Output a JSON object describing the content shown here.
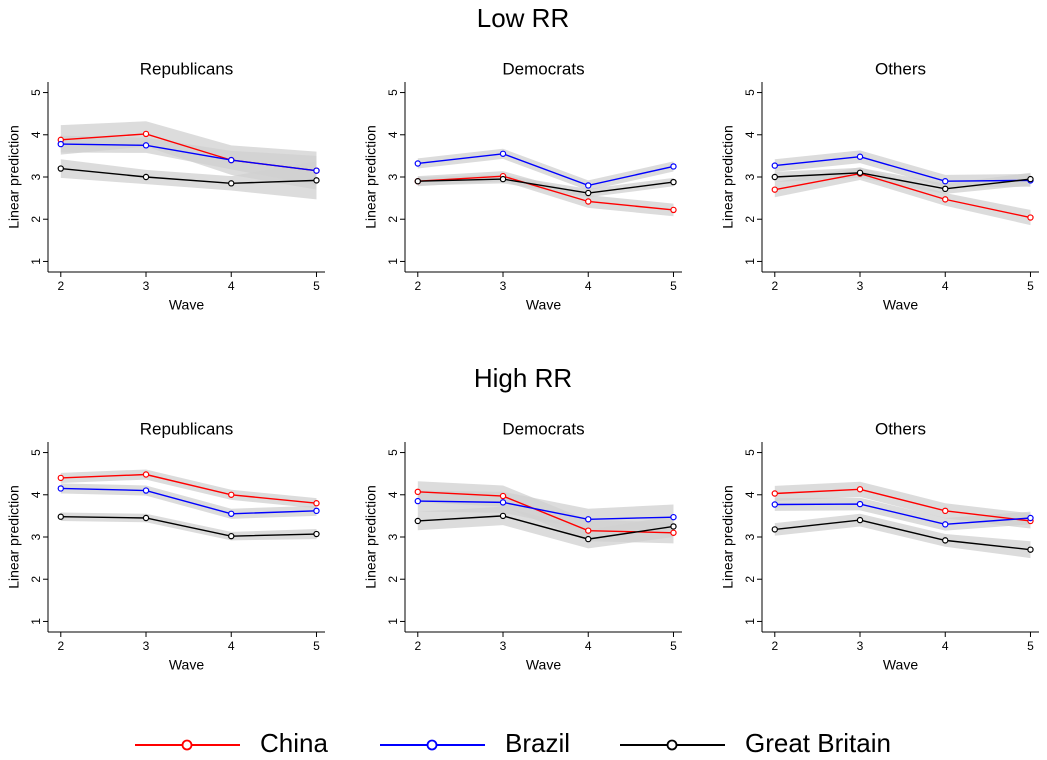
{
  "section_titles": [
    "Low RR",
    "High RR"
  ],
  "chart_data": [
    {
      "type": "line",
      "title": "Republicans",
      "xlabel": "Wave",
      "ylabel": "Linear prediction",
      "x": [
        2,
        3,
        4,
        5
      ],
      "xlim": [
        1.85,
        5.1
      ],
      "xticks": [
        2,
        3,
        4,
        5
      ],
      "ylim": [
        0.75,
        5.25
      ],
      "yticks": [
        1,
        2,
        3,
        4,
        5
      ],
      "series": [
        {
          "name": "China",
          "color": "#ff0000",
          "values": [
            3.88,
            4.02,
            3.4,
            3.15
          ],
          "ci": [
            0.35,
            0.3,
            0.35,
            0.45
          ]
        },
        {
          "name": "Brazil",
          "color": "#0000ff",
          "values": [
            3.78,
            3.75,
            3.4,
            3.15
          ],
          "ci": [
            0.2,
            0.18,
            0.22,
            0.35
          ]
        },
        {
          "name": "Great Britain",
          "color": "#000000",
          "values": [
            3.2,
            3.0,
            2.85,
            2.92
          ],
          "ci": [
            0.22,
            0.17,
            0.17,
            0.45
          ]
        }
      ]
    },
    {
      "type": "line",
      "title": "Democrats",
      "xlabel": "Wave",
      "ylabel": "Linear prediction",
      "x": [
        2,
        3,
        4,
        5
      ],
      "xlim": [
        1.85,
        5.1
      ],
      "xticks": [
        2,
        3,
        4,
        5
      ],
      "ylim": [
        0.75,
        5.25
      ],
      "yticks": [
        1,
        2,
        3,
        4,
        5
      ],
      "series": [
        {
          "name": "China",
          "color": "#ff0000",
          "values": [
            2.9,
            3.02,
            2.42,
            2.22
          ],
          "ci": [
            0.12,
            0.12,
            0.15,
            0.15
          ]
        },
        {
          "name": "Brazil",
          "color": "#0000ff",
          "values": [
            3.32,
            3.55,
            2.8,
            3.25
          ],
          "ci": [
            0.12,
            0.12,
            0.12,
            0.12
          ]
        },
        {
          "name": "Great Britain",
          "color": "#000000",
          "values": [
            2.9,
            2.95,
            2.62,
            2.88
          ],
          "ci": [
            0.1,
            0.1,
            0.1,
            0.1
          ]
        }
      ]
    },
    {
      "type": "line",
      "title": "Others",
      "xlabel": "Wave",
      "ylabel": "Linear prediction",
      "x": [
        2,
        3,
        4,
        5
      ],
      "xlim": [
        1.85,
        5.1
      ],
      "xticks": [
        2,
        3,
        4,
        5
      ],
      "ylim": [
        0.75,
        5.25
      ],
      "yticks": [
        1,
        2,
        3,
        4,
        5
      ],
      "series": [
        {
          "name": "China",
          "color": "#ff0000",
          "values": [
            2.7,
            3.08,
            2.47,
            2.04
          ],
          "ci": [
            0.18,
            0.15,
            0.15,
            0.18
          ]
        },
        {
          "name": "Brazil",
          "color": "#0000ff",
          "values": [
            3.27,
            3.48,
            2.9,
            2.92
          ],
          "ci": [
            0.15,
            0.15,
            0.15,
            0.15
          ]
        },
        {
          "name": "Great Britain",
          "color": "#000000",
          "values": [
            3.0,
            3.1,
            2.72,
            2.95
          ],
          "ci": [
            0.12,
            0.12,
            0.12,
            0.15
          ]
        }
      ]
    },
    {
      "type": "line",
      "title": "Republicans",
      "xlabel": "Wave",
      "ylabel": "Linear prediction",
      "x": [
        2,
        3,
        4,
        5
      ],
      "xlim": [
        1.85,
        5.1
      ],
      "xticks": [
        2,
        3,
        4,
        5
      ],
      "ylim": [
        0.75,
        5.25
      ],
      "yticks": [
        1,
        2,
        3,
        4,
        5
      ],
      "series": [
        {
          "name": "China",
          "color": "#ff0000",
          "values": [
            4.4,
            4.48,
            4.0,
            3.8
          ],
          "ci": [
            0.12,
            0.12,
            0.12,
            0.12
          ]
        },
        {
          "name": "Brazil",
          "color": "#0000ff",
          "values": [
            4.15,
            4.1,
            3.55,
            3.62
          ],
          "ci": [
            0.12,
            0.12,
            0.12,
            0.12
          ]
        },
        {
          "name": "Great Britain",
          "color": "#000000",
          "values": [
            3.48,
            3.45,
            3.02,
            3.07
          ],
          "ci": [
            0.1,
            0.1,
            0.1,
            0.12
          ]
        }
      ]
    },
    {
      "type": "line",
      "title": "Democrats",
      "xlabel": "Wave",
      "ylabel": "Linear prediction",
      "x": [
        2,
        3,
        4,
        5
      ],
      "xlim": [
        1.85,
        5.1
      ],
      "xticks": [
        2,
        3,
        4,
        5
      ],
      "ylim": [
        0.75,
        5.25
      ],
      "yticks": [
        1,
        2,
        3,
        4,
        5
      ],
      "series": [
        {
          "name": "China",
          "color": "#ff0000",
          "values": [
            4.07,
            3.97,
            3.15,
            3.1
          ],
          "ci": [
            0.25,
            0.25,
            0.25,
            0.25
          ]
        },
        {
          "name": "Brazil",
          "color": "#0000ff",
          "values": [
            3.85,
            3.82,
            3.42,
            3.47
          ],
          "ci": [
            0.25,
            0.25,
            0.25,
            0.3
          ]
        },
        {
          "name": "Great Britain",
          "color": "#000000",
          "values": [
            3.38,
            3.5,
            2.95,
            3.25
          ],
          "ci": [
            0.22,
            0.22,
            0.22,
            0.25
          ]
        }
      ]
    },
    {
      "type": "line",
      "title": "Others",
      "xlabel": "Wave",
      "ylabel": "Linear prediction",
      "x": [
        2,
        3,
        4,
        5
      ],
      "xlim": [
        1.85,
        5.1
      ],
      "xticks": [
        2,
        3,
        4,
        5
      ],
      "ylim": [
        0.75,
        5.25
      ],
      "yticks": [
        1,
        2,
        3,
        4,
        5
      ],
      "series": [
        {
          "name": "China",
          "color": "#ff0000",
          "values": [
            4.03,
            4.13,
            3.62,
            3.38
          ],
          "ci": [
            0.18,
            0.18,
            0.18,
            0.18
          ]
        },
        {
          "name": "Brazil",
          "color": "#0000ff",
          "values": [
            3.77,
            3.78,
            3.3,
            3.45
          ],
          "ci": [
            0.15,
            0.15,
            0.15,
            0.15
          ]
        },
        {
          "name": "Great Britain",
          "color": "#000000",
          "values": [
            3.18,
            3.4,
            2.92,
            2.7
          ],
          "ci": [
            0.15,
            0.15,
            0.15,
            0.2
          ]
        }
      ]
    }
  ]
}
